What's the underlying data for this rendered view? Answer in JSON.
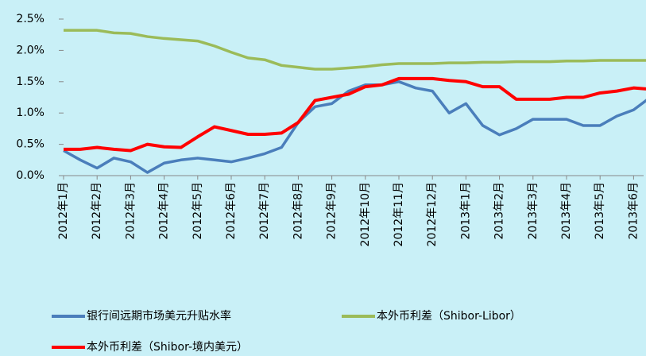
{
  "chart_data": {
    "type": "line",
    "categories": [
      "2012年1月",
      null,
      "2012年2月",
      null,
      "2012年3月",
      null,
      "2012年4月",
      null,
      "2012年5月",
      null,
      "2012年6月",
      null,
      "2012年7月",
      null,
      "2012年8月",
      null,
      "2012年9月",
      null,
      "2012年10月",
      null,
      "2012年11月",
      null,
      "2012年12月",
      null,
      "2013年1月",
      null,
      "2013年2月",
      null,
      "2013年3月",
      null,
      "2013年4月",
      null,
      "2013年5月",
      null,
      "2013年6月",
      null
    ],
    "series": [
      {
        "name": "银行间远期市场美元升贴水率",
        "color": "#4a7ebb",
        "values": [
          0.4,
          0.25,
          0.12,
          0.28,
          0.22,
          0.05,
          0.2,
          0.25,
          0.28,
          0.25,
          0.22,
          0.28,
          0.35,
          0.45,
          0.85,
          1.1,
          1.15,
          1.35,
          1.45,
          1.45,
          1.5,
          1.4,
          1.35,
          1.0,
          1.15,
          0.8,
          0.65,
          0.75,
          0.9,
          0.9,
          0.9,
          0.8,
          0.8,
          0.95,
          1.05,
          1.25
        ]
      },
      {
        "name": "本外币利差（Shibor-Libor）",
        "color": "#9bbb59",
        "values": [
          2.32,
          2.32,
          2.32,
          2.28,
          2.27,
          2.22,
          2.19,
          2.17,
          2.15,
          2.07,
          1.97,
          1.88,
          1.85,
          1.76,
          1.73,
          1.7,
          1.7,
          1.72,
          1.74,
          1.77,
          1.79,
          1.79,
          1.79,
          1.8,
          1.8,
          1.81,
          1.81,
          1.82,
          1.82,
          1.82,
          1.83,
          1.83,
          1.84,
          1.84,
          1.84,
          1.84
        ]
      },
      {
        "name": "本外币利差（Shibor-境内美元）",
        "color": "#ff0000",
        "values": [
          0.42,
          0.42,
          0.45,
          0.42,
          0.4,
          0.5,
          0.46,
          0.45,
          0.62,
          0.78,
          0.72,
          0.66,
          0.66,
          0.68,
          0.85,
          1.2,
          1.25,
          1.3,
          1.42,
          1.45,
          1.55,
          1.55,
          1.55,
          1.52,
          1.5,
          1.42,
          1.42,
          1.22,
          1.22,
          1.22,
          1.25,
          1.25,
          1.32,
          1.35,
          1.4,
          1.38
        ]
      }
    ],
    "ylim": [
      0,
      2.5
    ],
    "yticks": [
      {
        "value": 0,
        "label": "0.0%"
      },
      {
        "value": 0.5,
        "label": "0.5%"
      },
      {
        "value": 1,
        "label": "1.0%"
      },
      {
        "value": 1.5,
        "label": "1.5%"
      },
      {
        "value": 2,
        "label": "2.0%"
      },
      {
        "value": 2.5,
        "label": "2.5%"
      }
    ],
    "grid": false
  }
}
